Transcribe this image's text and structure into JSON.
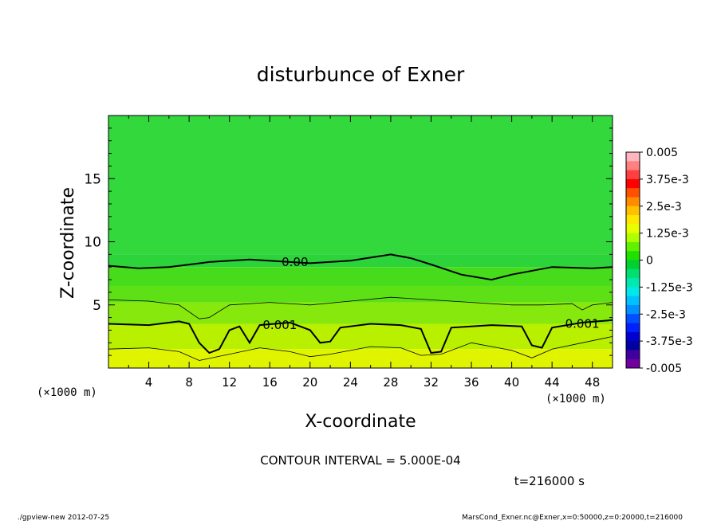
{
  "chart_data": {
    "type": "heatmap",
    "title": "disturbunce of Exner",
    "xlabel": "X-coordinate",
    "ylabel": "Z-coordinate",
    "x_unit_left": "(×1000 m)",
    "x_unit_right": "(×1000 m)",
    "xlim": [
      0,
      50
    ],
    "ylim": [
      0,
      20
    ],
    "x_ticks": [
      "4",
      "8",
      "12",
      "16",
      "20",
      "24",
      "28",
      "32",
      "36",
      "40",
      "44",
      "48"
    ],
    "y_ticks": [
      "5",
      "10",
      "15"
    ],
    "contour_interval_text": "CONTOUR INTERVAL = 5.000E-04",
    "time_text": "t=216000 s",
    "colorbar": {
      "labels": [
        "0.005",
        "3.75e-3",
        "2.5e-3",
        "1.25e-3",
        "0",
        "-1.25e-3",
        "-2.5e-3",
        "-3.75e-3",
        "-0.005"
      ],
      "colors_top_to_bottom": [
        "#ffb6c1",
        "#ff8080",
        "#ff4040",
        "#ff0000",
        "#ff5000",
        "#ff8c00",
        "#ffc000",
        "#ffe800",
        "#e8ff00",
        "#b0ff00",
        "#60f000",
        "#20e000",
        "#00d030",
        "#00e070",
        "#00e8b0",
        "#00e8e8",
        "#00c0ff",
        "#0090ff",
        "#0050ff",
        "#0020ff",
        "#0000d0",
        "#0000a0",
        "#4000a0",
        "#7000a0"
      ]
    },
    "contour_labels": [
      "0.00",
      "0.001",
      "0.001"
    ],
    "contours": [
      {
        "level": "0.00",
        "points": [
          [
            0,
            8.1
          ],
          [
            3,
            7.9
          ],
          [
            6,
            8.0
          ],
          [
            10,
            8.4
          ],
          [
            14,
            8.6
          ],
          [
            18,
            8.4
          ],
          [
            20,
            8.3
          ],
          [
            24,
            8.5
          ],
          [
            28,
            9.0
          ],
          [
            30,
            8.7
          ],
          [
            32,
            8.2
          ],
          [
            35,
            7.4
          ],
          [
            38,
            7.0
          ],
          [
            40,
            7.4
          ],
          [
            44,
            8.0
          ],
          [
            48,
            7.9
          ],
          [
            50,
            8.0
          ]
        ]
      },
      {
        "level": "0.0005",
        "points": [
          [
            0,
            5.4
          ],
          [
            4,
            5.3
          ],
          [
            7,
            5.0
          ],
          [
            9,
            3.9
          ],
          [
            10,
            4.0
          ],
          [
            12,
            5.0
          ],
          [
            16,
            5.2
          ],
          [
            20,
            5.0
          ],
          [
            24,
            5.3
          ],
          [
            28,
            5.6
          ],
          [
            32,
            5.4
          ],
          [
            36,
            5.2
          ],
          [
            40,
            5.0
          ],
          [
            43,
            5.0
          ],
          [
            46,
            5.1
          ],
          [
            47,
            4.6
          ],
          [
            48,
            5.0
          ],
          [
            50,
            5.2
          ]
        ]
      },
      {
        "level": "0.001",
        "points": [
          [
            0,
            3.5
          ],
          [
            4,
            3.4
          ],
          [
            7,
            3.7
          ],
          [
            8,
            3.5
          ],
          [
            9,
            2.0
          ],
          [
            10,
            1.2
          ],
          [
            11,
            1.5
          ],
          [
            12,
            3.0
          ],
          [
            13,
            3.3
          ],
          [
            14,
            2.0
          ],
          [
            15,
            3.4
          ],
          [
            18,
            3.6
          ],
          [
            20,
            3.0
          ],
          [
            21,
            2.0
          ],
          [
            22,
            2.1
          ],
          [
            23,
            3.2
          ],
          [
            26,
            3.5
          ],
          [
            29,
            3.4
          ],
          [
            31,
            3.1
          ],
          [
            32,
            1.2
          ],
          [
            33,
            1.3
          ],
          [
            34,
            3.2
          ],
          [
            38,
            3.4
          ],
          [
            41,
            3.3
          ],
          [
            42,
            1.8
          ],
          [
            43,
            1.6
          ],
          [
            44,
            3.2
          ],
          [
            47,
            3.6
          ],
          [
            50,
            3.8
          ]
        ]
      },
      {
        "level": "0.0015",
        "points": [
          [
            0,
            1.5
          ],
          [
            4,
            1.6
          ],
          [
            7,
            1.3
          ],
          [
            9,
            0.6
          ],
          [
            12,
            1.1
          ],
          [
            15,
            1.6
          ],
          [
            18,
            1.3
          ],
          [
            20,
            0.9
          ],
          [
            22,
            1.1
          ],
          [
            26,
            1.7
          ],
          [
            29,
            1.6
          ],
          [
            31,
            1.0
          ],
          [
            33,
            1.1
          ],
          [
            36,
            2.0
          ],
          [
            40,
            1.4
          ],
          [
            42,
            0.8
          ],
          [
            44,
            1.5
          ],
          [
            47,
            2.0
          ],
          [
            50,
            2.5
          ]
        ]
      }
    ],
    "field_bands": [
      {
        "zmin": 9.0,
        "zmax": 20.0,
        "color": "#32d83c"
      },
      {
        "zmin": 8.0,
        "zmax": 9.0,
        "color": "#2cd33a"
      },
      {
        "zmin": 6.5,
        "zmax": 8.0,
        "color": "#46dc1c"
      },
      {
        "zmin": 5.2,
        "zmax": 6.5,
        "color": "#5ee016"
      },
      {
        "zmin": 3.5,
        "zmax": 5.2,
        "color": "#86e80c"
      },
      {
        "zmin": 1.5,
        "zmax": 3.5,
        "color": "#b8f000"
      },
      {
        "zmin": 0.0,
        "zmax": 1.5,
        "color": "#e0f400"
      }
    ]
  },
  "footer": {
    "left": "./gpview-new   2012-07-25",
    "right": "MarsCond_Exner.nc@Exner,x=0:50000,z=0:20000,t=216000"
  }
}
